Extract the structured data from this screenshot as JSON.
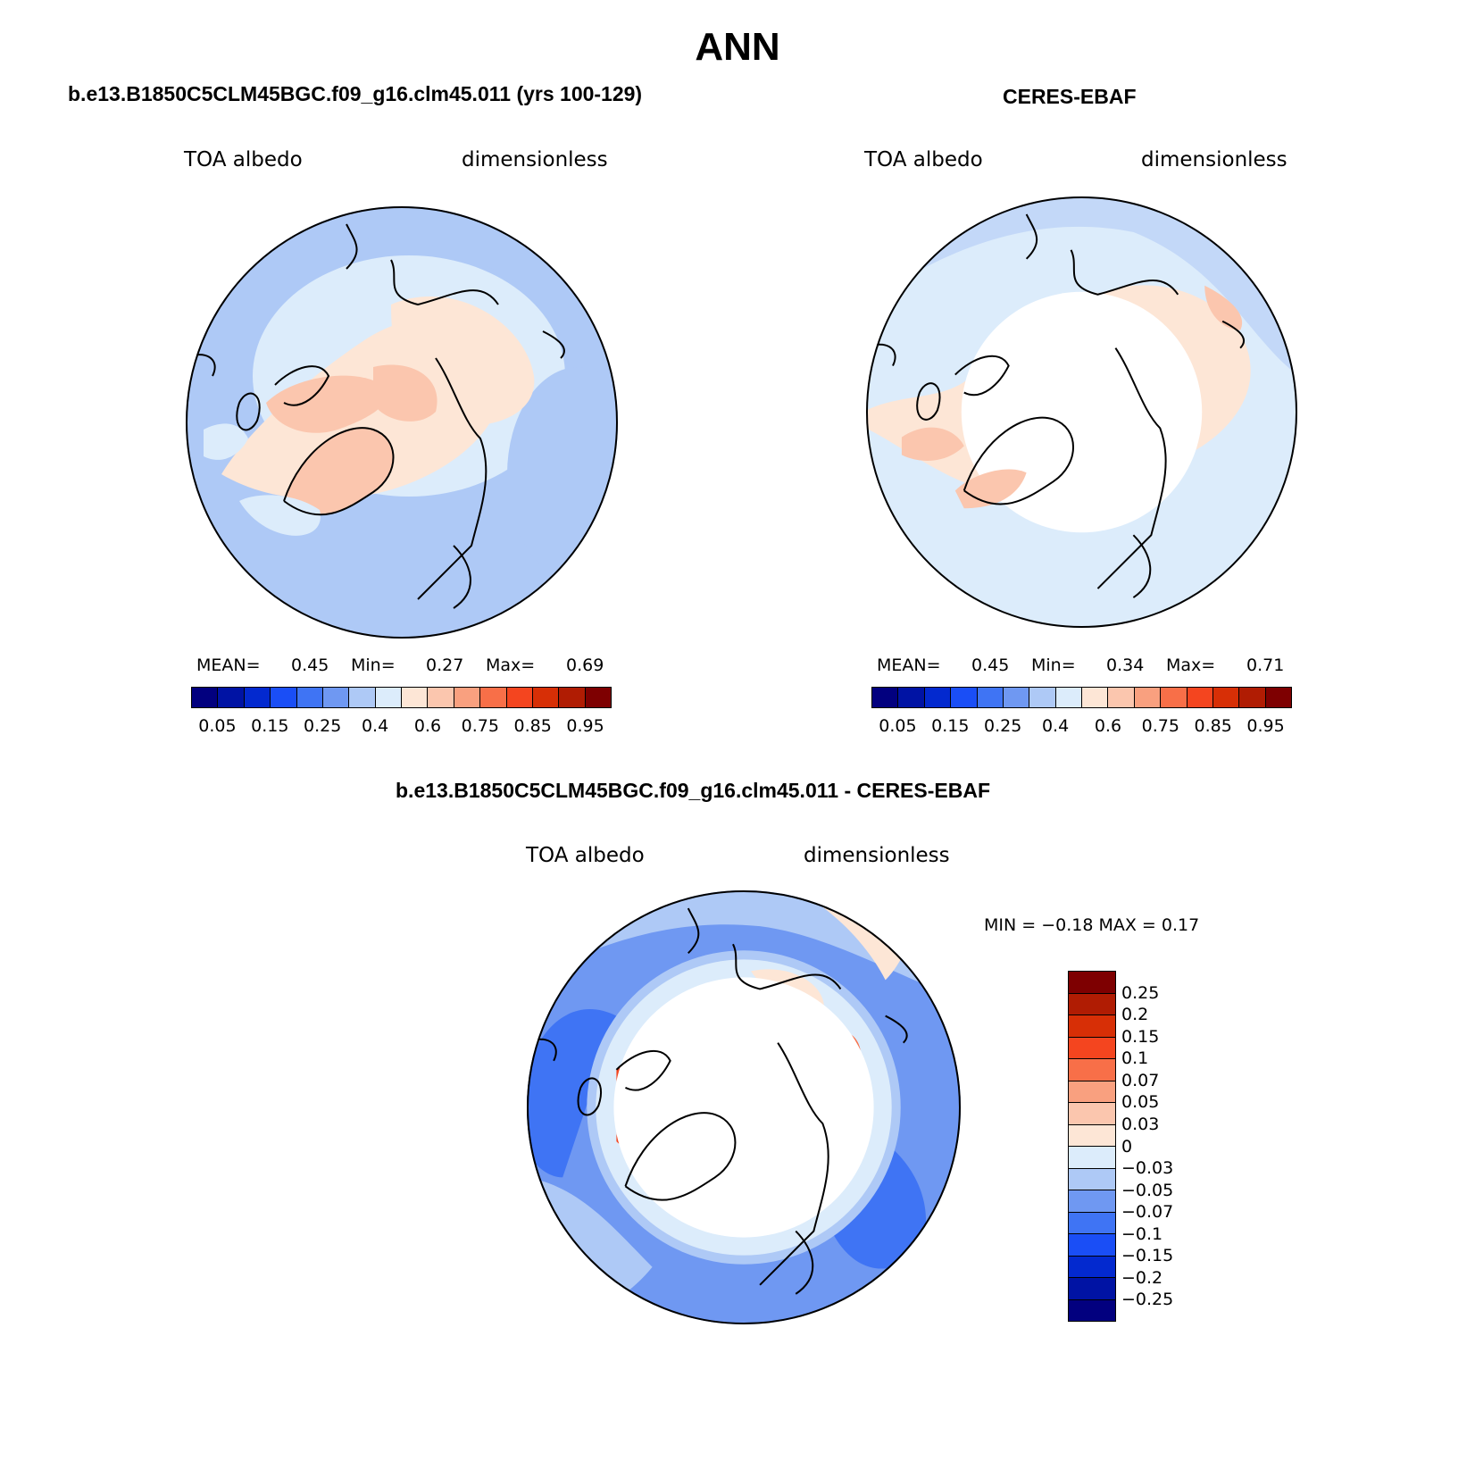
{
  "title": "ANN",
  "panels": [
    {
      "id": "model",
      "header": "b.e13.B1850C5CLM45BGC.f09_g16.clm45.011 (yrs 100-129)",
      "left_label": "TOA albedo",
      "right_label": "dimensionless",
      "mean_label": "MEAN=",
      "mean": "0.45",
      "min_label": "Min=",
      "min": "0.27",
      "max_label": "Max=",
      "max": "0.69"
    },
    {
      "id": "obs",
      "header": "CERES-EBAF",
      "left_label": "TOA albedo",
      "right_label": "dimensionless",
      "mean_label": "MEAN=",
      "mean": "0.45",
      "min_label": "Min=",
      "min": "0.34",
      "max_label": "Max=",
      "max": "0.71"
    },
    {
      "id": "diff",
      "header": "b.e13.B1850C5CLM45BGC.f09_g16.clm45.011 - CERES-EBAF",
      "left_label": "TOA albedo",
      "right_label": "dimensionless",
      "minmax_text": "MIN =  −0.18 MAX =    0.17"
    }
  ],
  "colorbar_abs": {
    "colors": [
      "#02007f",
      "#0013a4",
      "#0329cf",
      "#1a4ef6",
      "#3f74f4",
      "#6f98f2",
      "#aec9f6",
      "#dcecfb",
      "#fde6d6",
      "#fbc6ae",
      "#f9a07f",
      "#f86f48",
      "#f4451f",
      "#d72f06",
      "#b01c03",
      "#7e0001"
    ],
    "tick_labels": [
      "0.05",
      "0.15",
      "0.25",
      "0.4",
      "0.6",
      "0.75",
      "0.85",
      "0.95"
    ]
  },
  "colorbar_diff": {
    "colors_top_to_bottom": [
      "#7e0001",
      "#b01c03",
      "#d72f06",
      "#f4451f",
      "#f86f48",
      "#f9a07f",
      "#fbc6ae",
      "#fde6d6",
      "#dcecfb",
      "#aec9f6",
      "#6f98f2",
      "#3f74f4",
      "#1a4ef6",
      "#0329cf",
      "#0013a4",
      "#02007f"
    ],
    "tick_labels": [
      "0.25",
      "0.2",
      "0.15",
      "0.1",
      "0.07",
      "0.05",
      "0.03",
      "0",
      "−0.03",
      "−0.05",
      "−0.07",
      "−0.1",
      "−0.15",
      "−0.2",
      "−0.25"
    ]
  },
  "chart_data": [
    {
      "type": "heatmap",
      "title": "b.e13.B1850C5CLM45BGC.f09_g16.clm45.011 (yrs 100-129)",
      "variable": "TOA albedo",
      "units": "dimensionless",
      "projection": "north polar stereographic",
      "mean": 0.45,
      "min": 0.27,
      "max": 0.69,
      "colorbar_ticks": [
        0.05,
        0.15,
        0.25,
        0.4,
        0.6,
        0.75,
        0.85,
        0.95
      ]
    },
    {
      "type": "heatmap",
      "title": "CERES-EBAF",
      "variable": "TOA albedo",
      "units": "dimensionless",
      "projection": "north polar stereographic",
      "mean": 0.45,
      "min": 0.34,
      "max": 0.71,
      "colorbar_ticks": [
        0.05,
        0.15,
        0.25,
        0.4,
        0.6,
        0.75,
        0.85,
        0.95
      ]
    },
    {
      "type": "heatmap",
      "title": "b.e13.B1850C5CLM45BGC.f09_g16.clm45.011 - CERES-EBAF",
      "variable": "TOA albedo",
      "units": "dimensionless",
      "projection": "north polar stereographic",
      "min": -0.18,
      "max": 0.17,
      "colorbar_ticks": [
        0.25,
        0.2,
        0.15,
        0.1,
        0.07,
        0.05,
        0.03,
        0,
        -0.03,
        -0.05,
        -0.07,
        -0.1,
        -0.15,
        -0.2,
        -0.25
      ]
    }
  ]
}
